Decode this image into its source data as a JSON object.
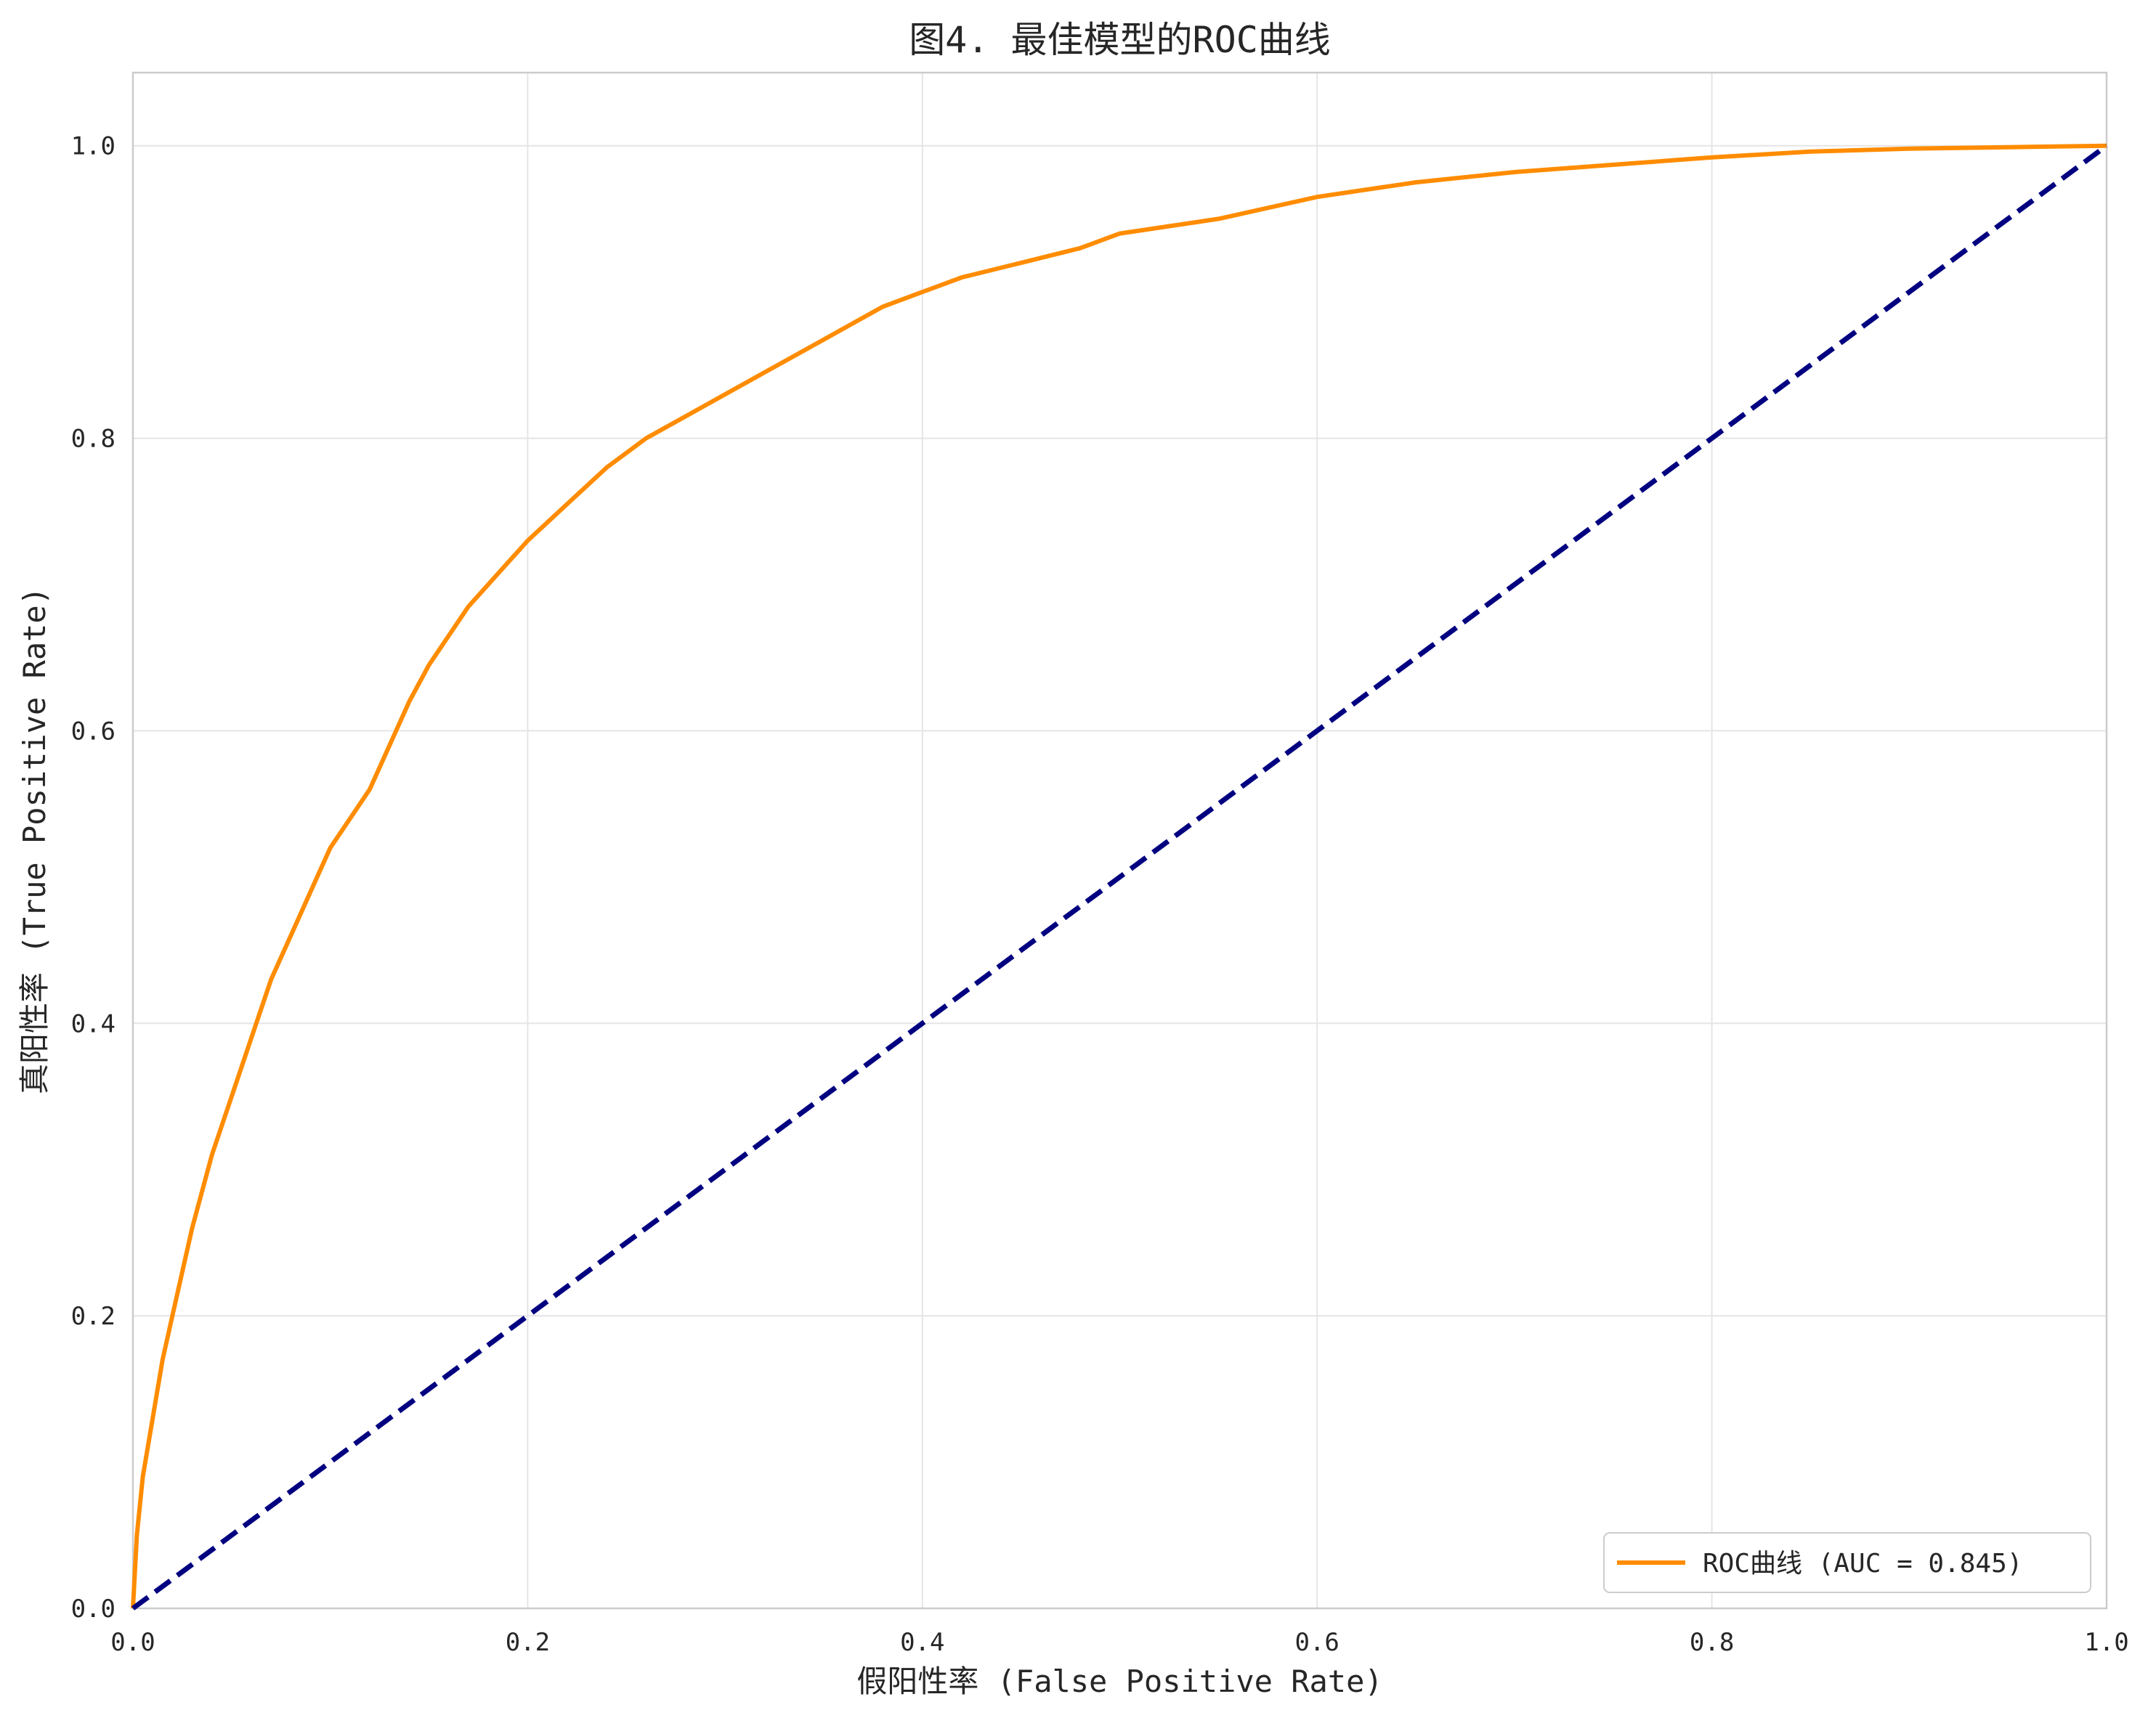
{
  "chart_data": {
    "type": "line",
    "title": "图4. 最佳模型的ROC曲线",
    "xlabel": "假阳性率 (False Positive Rate)",
    "ylabel": "真阳性率 (True Positive Rate)",
    "xlim": [
      0.0,
      1.0
    ],
    "ylim": [
      0.0,
      1.05
    ],
    "xticks": [
      0.0,
      0.2,
      0.4,
      0.6,
      0.8,
      1.0
    ],
    "yticks": [
      0.0,
      0.2,
      0.4,
      0.6,
      0.8,
      1.0
    ],
    "xtick_labels": [
      "0.0",
      "0.2",
      "0.4",
      "0.6",
      "0.8",
      "1.0"
    ],
    "ytick_labels": [
      "0.0",
      "0.2",
      "0.4",
      "0.6",
      "0.8",
      "1.0"
    ],
    "grid": true,
    "legend_position": "lower-right",
    "series": [
      {
        "name": "ROC曲线 (AUC = 0.845)",
        "color": "#ff8c00",
        "style": "solid",
        "x": [
          0.0,
          0.002,
          0.005,
          0.01,
          0.015,
          0.02,
          0.025,
          0.03,
          0.04,
          0.05,
          0.06,
          0.07,
          0.08,
          0.09,
          0.1,
          0.11,
          0.12,
          0.13,
          0.14,
          0.15,
          0.16,
          0.17,
          0.18,
          0.19,
          0.2,
          0.22,
          0.24,
          0.26,
          0.28,
          0.3,
          0.32,
          0.34,
          0.36,
          0.38,
          0.4,
          0.42,
          0.45,
          0.48,
          0.5,
          0.55,
          0.6,
          0.65,
          0.7,
          0.75,
          0.8,
          0.85,
          0.9,
          0.95,
          1.0
        ],
        "y": [
          0.0,
          0.05,
          0.09,
          0.13,
          0.17,
          0.2,
          0.23,
          0.26,
          0.31,
          0.35,
          0.39,
          0.43,
          0.46,
          0.49,
          0.52,
          0.54,
          0.56,
          0.59,
          0.62,
          0.645,
          0.665,
          0.685,
          0.7,
          0.715,
          0.73,
          0.755,
          0.78,
          0.8,
          0.815,
          0.83,
          0.845,
          0.86,
          0.875,
          0.89,
          0.9,
          0.91,
          0.92,
          0.93,
          0.94,
          0.95,
          0.965,
          0.975,
          0.982,
          0.987,
          0.992,
          0.996,
          0.998,
          0.999,
          1.0
        ]
      },
      {
        "name": "",
        "color": "#000080",
        "style": "dashed",
        "x": [
          0.0,
          1.0
        ],
        "y": [
          0.0,
          1.0
        ]
      }
    ],
    "colors": {
      "grid": "#e5e5e5",
      "spine": "#cccccc",
      "legend_border": "#cccccc"
    }
  }
}
